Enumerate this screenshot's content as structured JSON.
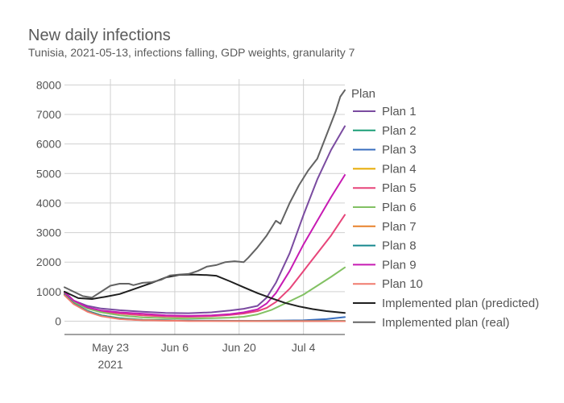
{
  "chart_data": {
    "type": "line",
    "title": "New daily infections",
    "subtitle": "Tunisia, 2021-05-13, infections falling, GDP weights, granularity 7",
    "xlabel": "",
    "ylabel": "",
    "x_start": "2021-05-13",
    "x_end": "2021-07-13",
    "x_ticks": [
      {
        "date": "2021-05-23",
        "label": "May 23",
        "sublabel": "2021"
      },
      {
        "date": "2021-06-06",
        "label": "Jun 6",
        "sublabel": ""
      },
      {
        "date": "2021-06-20",
        "label": "Jun 20",
        "sublabel": ""
      },
      {
        "date": "2021-07-04",
        "label": "Jul 4",
        "sublabel": ""
      }
    ],
    "ylim": [
      -450,
      8200
    ],
    "y_ticks": [
      0,
      1000,
      2000,
      3000,
      4000,
      5000,
      6000,
      7000,
      8000
    ],
    "grid": true,
    "legend_title": "Plan",
    "legend_position": "right",
    "series": [
      {
        "name": "Plan 1",
        "color": "#7a4ba0",
        "points": [
          [
            "2021-05-13",
            1000
          ],
          [
            "2021-05-15",
            700
          ],
          [
            "2021-05-18",
            520
          ],
          [
            "2021-05-21",
            430
          ],
          [
            "2021-05-25",
            370
          ],
          [
            "2021-05-30",
            320
          ],
          [
            "2021-06-04",
            280
          ],
          [
            "2021-06-09",
            270
          ],
          [
            "2021-06-14",
            300
          ],
          [
            "2021-06-18",
            360
          ],
          [
            "2021-06-21",
            420
          ],
          [
            "2021-06-24",
            520
          ],
          [
            "2021-06-26",
            800
          ],
          [
            "2021-06-28",
            1300
          ],
          [
            "2021-07-01",
            2300
          ],
          [
            "2021-07-04",
            3600
          ],
          [
            "2021-07-07",
            4800
          ],
          [
            "2021-07-10",
            5800
          ],
          [
            "2021-07-13",
            6600
          ]
        ]
      },
      {
        "name": "Plan 2",
        "color": "#1b9e77",
        "points": [
          [
            "2021-05-13",
            900
          ],
          [
            "2021-05-15",
            600
          ],
          [
            "2021-05-18",
            350
          ],
          [
            "2021-05-21",
            200
          ],
          [
            "2021-05-25",
            100
          ],
          [
            "2021-05-30",
            50
          ],
          [
            "2021-06-09",
            20
          ],
          [
            "2021-06-24",
            10
          ],
          [
            "2021-07-13",
            5
          ]
        ]
      },
      {
        "name": "Plan 3",
        "color": "#3a6fbf",
        "points": [
          [
            "2021-05-13",
            900
          ],
          [
            "2021-05-15",
            600
          ],
          [
            "2021-05-18",
            350
          ],
          [
            "2021-05-21",
            200
          ],
          [
            "2021-05-25",
            90
          ],
          [
            "2021-05-30",
            40
          ],
          [
            "2021-06-09",
            20
          ],
          [
            "2021-06-24",
            15
          ],
          [
            "2021-07-04",
            30
          ],
          [
            "2021-07-09",
            70
          ],
          [
            "2021-07-13",
            140
          ]
        ]
      },
      {
        "name": "Plan 4",
        "color": "#e6ab02",
        "points": [
          [
            "2021-05-13",
            900
          ],
          [
            "2021-05-15",
            600
          ],
          [
            "2021-05-18",
            340
          ],
          [
            "2021-05-21",
            190
          ],
          [
            "2021-05-25",
            85
          ],
          [
            "2021-05-30",
            40
          ],
          [
            "2021-06-09",
            15
          ],
          [
            "2021-07-13",
            5
          ]
        ]
      },
      {
        "name": "Plan 5",
        "color": "#e7457a",
        "points": [
          [
            "2021-05-13",
            950
          ],
          [
            "2021-05-15",
            650
          ],
          [
            "2021-05-18",
            450
          ],
          [
            "2021-05-21",
            330
          ],
          [
            "2021-05-25",
            260
          ],
          [
            "2021-05-30",
            200
          ],
          [
            "2021-06-04",
            160
          ],
          [
            "2021-06-09",
            150
          ],
          [
            "2021-06-14",
            170
          ],
          [
            "2021-06-18",
            210
          ],
          [
            "2021-06-21",
            260
          ],
          [
            "2021-06-24",
            340
          ],
          [
            "2021-06-26",
            450
          ],
          [
            "2021-06-28",
            650
          ],
          [
            "2021-07-01",
            1100
          ],
          [
            "2021-07-04",
            1700
          ],
          [
            "2021-07-07",
            2300
          ],
          [
            "2021-07-10",
            2900
          ],
          [
            "2021-07-13",
            3600
          ]
        ]
      },
      {
        "name": "Plan 6",
        "color": "#82c163",
        "points": [
          [
            "2021-05-13",
            950
          ],
          [
            "2021-05-15",
            650
          ],
          [
            "2021-05-18",
            430
          ],
          [
            "2021-05-21",
            300
          ],
          [
            "2021-05-25",
            200
          ],
          [
            "2021-05-30",
            130
          ],
          [
            "2021-06-04",
            100
          ],
          [
            "2021-06-09",
            90
          ],
          [
            "2021-06-14",
            100
          ],
          [
            "2021-06-18",
            120
          ],
          [
            "2021-06-21",
            150
          ],
          [
            "2021-06-24",
            230
          ],
          [
            "2021-06-27",
            380
          ],
          [
            "2021-06-30",
            600
          ],
          [
            "2021-07-04",
            900
          ],
          [
            "2021-07-07",
            1200
          ],
          [
            "2021-07-10",
            1500
          ],
          [
            "2021-07-13",
            1820
          ]
        ]
      },
      {
        "name": "Plan 7",
        "color": "#e8822b",
        "points": [
          [
            "2021-05-13",
            900
          ],
          [
            "2021-05-15",
            600
          ],
          [
            "2021-05-18",
            340
          ],
          [
            "2021-05-21",
            190
          ],
          [
            "2021-05-25",
            80
          ],
          [
            "2021-05-30",
            35
          ],
          [
            "2021-06-09",
            10
          ],
          [
            "2021-07-13",
            0
          ]
        ]
      },
      {
        "name": "Plan 8",
        "color": "#17898f",
        "points": [
          [
            "2021-05-13",
            900
          ],
          [
            "2021-05-15",
            600
          ],
          [
            "2021-05-18",
            340
          ],
          [
            "2021-05-21",
            190
          ],
          [
            "2021-05-25",
            85
          ],
          [
            "2021-05-30",
            38
          ],
          [
            "2021-06-09",
            15
          ],
          [
            "2021-07-13",
            8
          ]
        ]
      },
      {
        "name": "Plan 9",
        "color": "#c71bb3",
        "points": [
          [
            "2021-05-13",
            980
          ],
          [
            "2021-05-15",
            700
          ],
          [
            "2021-05-18",
            470
          ],
          [
            "2021-05-21",
            360
          ],
          [
            "2021-05-25",
            300
          ],
          [
            "2021-05-30",
            250
          ],
          [
            "2021-06-04",
            200
          ],
          [
            "2021-06-09",
            180
          ],
          [
            "2021-06-14",
            200
          ],
          [
            "2021-06-18",
            240
          ],
          [
            "2021-06-21",
            300
          ],
          [
            "2021-06-24",
            400
          ],
          [
            "2021-06-26",
            600
          ],
          [
            "2021-06-28",
            950
          ],
          [
            "2021-07-01",
            1700
          ],
          [
            "2021-07-04",
            2600
          ],
          [
            "2021-07-07",
            3400
          ],
          [
            "2021-07-10",
            4200
          ],
          [
            "2021-07-13",
            4950
          ]
        ]
      },
      {
        "name": "Plan 10",
        "color": "#f07b6e",
        "points": [
          [
            "2021-05-13",
            880
          ],
          [
            "2021-05-15",
            580
          ],
          [
            "2021-05-18",
            320
          ],
          [
            "2021-05-21",
            170
          ],
          [
            "2021-05-25",
            70
          ],
          [
            "2021-05-30",
            30
          ],
          [
            "2021-06-09",
            8
          ],
          [
            "2021-07-13",
            0
          ]
        ]
      },
      {
        "name": "Implemented plan (predicted)",
        "color": "#1f1f1f",
        "points": [
          [
            "2021-05-13",
            1000
          ],
          [
            "2021-05-16",
            780
          ],
          [
            "2021-05-19",
            750
          ],
          [
            "2021-05-22",
            830
          ],
          [
            "2021-05-25",
            920
          ],
          [
            "2021-05-28",
            1080
          ],
          [
            "2021-06-01",
            1300
          ],
          [
            "2021-06-04",
            1480
          ],
          [
            "2021-06-07",
            1570
          ],
          [
            "2021-06-10",
            1580
          ],
          [
            "2021-06-13",
            1560
          ],
          [
            "2021-06-15",
            1540
          ],
          [
            "2021-06-18",
            1350
          ],
          [
            "2021-06-21",
            1150
          ],
          [
            "2021-06-24",
            950
          ],
          [
            "2021-06-27",
            780
          ],
          [
            "2021-06-30",
            620
          ],
          [
            "2021-07-03",
            500
          ],
          [
            "2021-07-06",
            410
          ],
          [
            "2021-07-09",
            340
          ],
          [
            "2021-07-13",
            280
          ]
        ]
      },
      {
        "name": "Implemented plan (real)",
        "color": "#636363",
        "points": [
          [
            "2021-05-13",
            1150
          ],
          [
            "2021-05-15",
            1000
          ],
          [
            "2021-05-17",
            850
          ],
          [
            "2021-05-19",
            800
          ],
          [
            "2021-05-21",
            1000
          ],
          [
            "2021-05-23",
            1200
          ],
          [
            "2021-05-25",
            1270
          ],
          [
            "2021-05-27",
            1270
          ],
          [
            "2021-05-28",
            1220
          ],
          [
            "2021-05-30",
            1300
          ],
          [
            "2021-06-01",
            1320
          ],
          [
            "2021-06-03",
            1400
          ],
          [
            "2021-06-05",
            1550
          ],
          [
            "2021-06-07",
            1580
          ],
          [
            "2021-06-09",
            1600
          ],
          [
            "2021-06-11",
            1700
          ],
          [
            "2021-06-13",
            1850
          ],
          [
            "2021-06-15",
            1900
          ],
          [
            "2021-06-17",
            2000
          ],
          [
            "2021-06-19",
            2030
          ],
          [
            "2021-06-21",
            2000
          ],
          [
            "2021-06-22",
            2150
          ],
          [
            "2021-06-24",
            2500
          ],
          [
            "2021-06-26",
            2900
          ],
          [
            "2021-06-28",
            3400
          ],
          [
            "2021-06-29",
            3300
          ],
          [
            "2021-07-01",
            4000
          ],
          [
            "2021-07-03",
            4600
          ],
          [
            "2021-07-05",
            5100
          ],
          [
            "2021-07-07",
            5500
          ],
          [
            "2021-07-09",
            6300
          ],
          [
            "2021-07-11",
            7100
          ],
          [
            "2021-07-12",
            7600
          ],
          [
            "2021-07-13",
            7820
          ]
        ]
      }
    ]
  }
}
